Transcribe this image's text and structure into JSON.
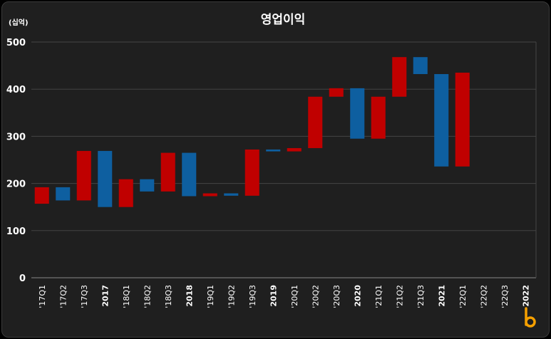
{
  "chart_data": {
    "type": "bar",
    "subtype": "waterfall",
    "title": "영업이익",
    "ylabel": "(십억)",
    "ylim": [
      0,
      500
    ],
    "yticks": [
      0,
      100,
      200,
      300,
      400,
      500
    ],
    "grid": true,
    "categories": [
      "'17Q1",
      "'17Q2",
      "'17Q3",
      "2017",
      "'18Q1",
      "'18Q2",
      "'18Q3",
      "2018",
      "'19Q1",
      "'19Q2",
      "'19Q3",
      "2019",
      "'20Q1",
      "'20Q2",
      "'20Q3",
      "2020",
      "'21Q1",
      "'21Q2",
      "'21Q3",
      "2021",
      "'22Q1",
      "'22Q2",
      "'22Q3",
      "2022"
    ],
    "bold_categories": [
      "2017",
      "2018",
      "2019",
      "2020",
      "2021",
      "2022"
    ],
    "bars": [
      {
        "low": 157,
        "high": 192,
        "color": "#c00000"
      },
      {
        "low": 164,
        "high": 192,
        "color": "#0e5fa0"
      },
      {
        "low": 164,
        "high": 269,
        "color": "#c00000"
      },
      {
        "low": 150,
        "high": 269,
        "color": "#0e5fa0"
      },
      {
        "low": 150,
        "high": 209,
        "color": "#c00000"
      },
      {
        "low": 183,
        "high": 209,
        "color": "#0e5fa0"
      },
      {
        "low": 183,
        "high": 265,
        "color": "#c00000"
      },
      {
        "low": 173,
        "high": 265,
        "color": "#0e5fa0"
      },
      {
        "low": 173,
        "high": 179,
        "color": "#c00000"
      },
      {
        "low": 174,
        "high": 179,
        "color": "#0e5fa0"
      },
      {
        "low": 174,
        "high": 272,
        "color": "#c00000"
      },
      {
        "low": 268,
        "high": 272,
        "color": "#0e5fa0"
      },
      {
        "low": 268,
        "high": 275,
        "color": "#c00000"
      },
      {
        "low": 275,
        "high": 384,
        "color": "#c00000"
      },
      {
        "low": 384,
        "high": 402,
        "color": "#c00000"
      },
      {
        "low": 295,
        "high": 402,
        "color": "#0e5fa0"
      },
      {
        "low": 295,
        "high": 384,
        "color": "#c00000"
      },
      {
        "low": 384,
        "high": 468,
        "color": "#c00000"
      },
      {
        "low": 432,
        "high": 468,
        "color": "#0e5fa0"
      },
      {
        "low": 236,
        "high": 432,
        "color": "#0e5fa0"
      },
      {
        "low": 236,
        "high": 435,
        "color": "#c00000"
      },
      null,
      null,
      null
    ],
    "colors": {
      "increase": "#c00000",
      "decrease": "#0e5fa0",
      "logo": "#f5a000"
    }
  },
  "logo": {
    "icon": "b-logo-icon"
  }
}
